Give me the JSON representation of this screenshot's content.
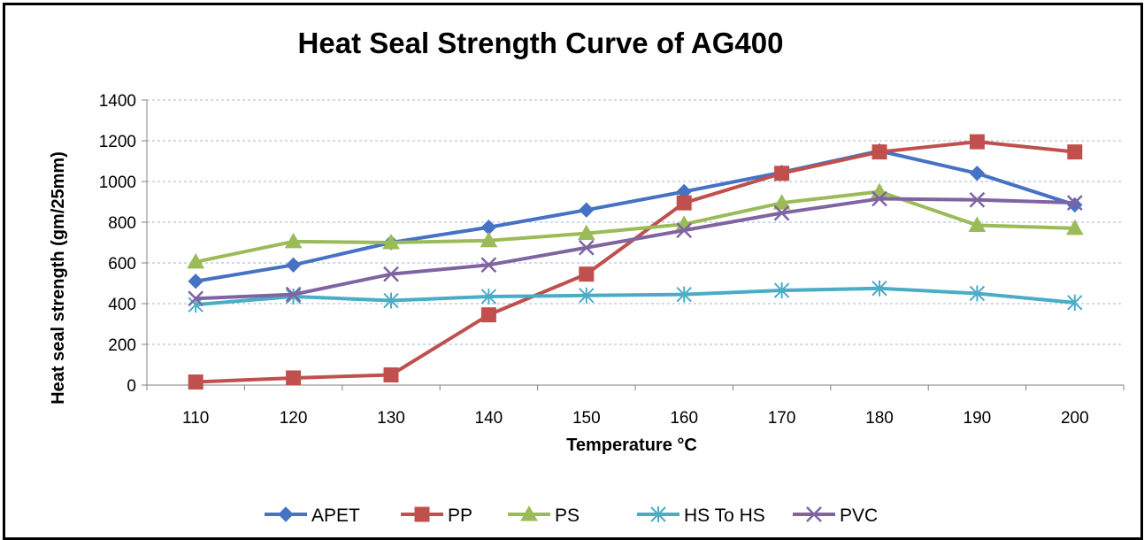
{
  "chart_data": {
    "type": "line",
    "title": "Heat Seal Strength Curve of AG400",
    "xlabel": "Temperature °C",
    "ylabel": "Heat seal strength  (gm/25mm)",
    "x": [
      110,
      120,
      130,
      140,
      150,
      160,
      170,
      180,
      190,
      200
    ],
    "ylim": [
      0,
      1400
    ],
    "yticks": [
      0,
      200,
      400,
      600,
      800,
      1000,
      1200,
      1400
    ],
    "grid": true,
    "legend_position": "bottom",
    "series": [
      {
        "name": "APET",
        "color": "#4572C4",
        "marker": "diamond",
        "values": [
          510,
          590,
          700,
          775,
          860,
          950,
          1045,
          1150,
          1040,
          885
        ]
      },
      {
        "name": "PP",
        "color": "#C0504D",
        "marker": "square",
        "values": [
          15,
          35,
          50,
          345,
          545,
          895,
          1040,
          1145,
          1195,
          1145
        ]
      },
      {
        "name": "PS",
        "color": "#9BBB59",
        "marker": "triangle",
        "values": [
          605,
          705,
          700,
          710,
          745,
          790,
          895,
          950,
          785,
          770
        ]
      },
      {
        "name": "HS To HS",
        "color": "#4BACC6",
        "marker": "asterisk",
        "values": [
          395,
          435,
          415,
          435,
          440,
          445,
          465,
          475,
          450,
          405
        ]
      },
      {
        "name": "PVC",
        "color": "#8064A2",
        "marker": "x",
        "values": [
          425,
          445,
          545,
          590,
          675,
          760,
          845,
          915,
          910,
          895
        ]
      }
    ]
  }
}
